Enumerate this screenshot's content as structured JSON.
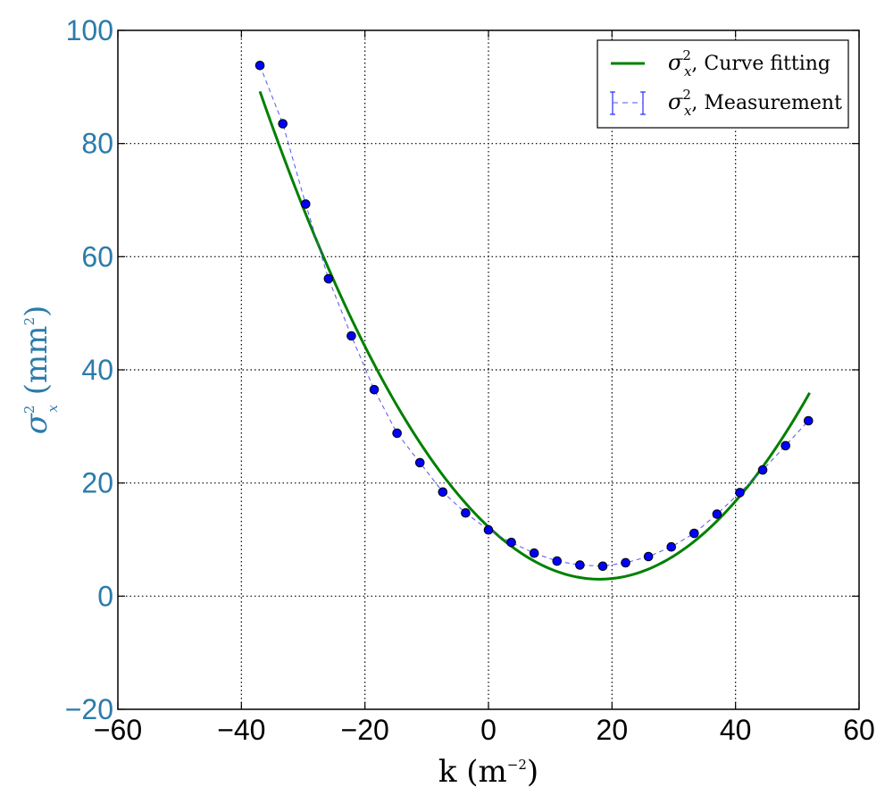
{
  "chart_data": {
    "type": "line",
    "xlabel": {
      "text": "k (m",
      "sup": "−2",
      "close": ")"
    },
    "ylabel": {
      "sym": "σ",
      "sup": "2",
      "sub": "x",
      "text": " (mm",
      "sup2": "2",
      "close": ")"
    },
    "xlim": [
      -60,
      60
    ],
    "ylim": [
      -20,
      100
    ],
    "xticks": [
      -60,
      -40,
      -20,
      0,
      20,
      40,
      60
    ],
    "yticks": [
      -20,
      0,
      20,
      40,
      60,
      80,
      100
    ],
    "xtick_labels": [
      "−60",
      "−40",
      "−20",
      "0",
      "20",
      "40",
      "60"
    ],
    "ytick_labels": [
      "−20",
      "0",
      "20",
      "40",
      "60",
      "80",
      "100"
    ],
    "grid": true,
    "legend_position": "top-right",
    "ytick_color": "#2b7bab",
    "ylabel_color": "#2b7bab",
    "series": [
      {
        "name_sym": "σ",
        "name_sup": "2",
        "name_sub": "x",
        "name": ", Curve fitting",
        "kind": "line",
        "color": "#008000",
        "x_range": [
          -37,
          52
        ],
        "fit": {
          "vertex_x": 18,
          "vertex_y": 3,
          "a": 0.0285
        }
      },
      {
        "name_sym": "σ",
        "name_sup": "2",
        "name_sub": "x",
        "name": ", Measurement",
        "kind": "errorbar",
        "color": "#0000ff",
        "line_color": "#5555ee",
        "x": [
          -37,
          -33.3,
          -29.6,
          -25.9,
          -22.2,
          -18.5,
          -14.8,
          -11.1,
          -7.4,
          -3.7,
          0,
          3.7,
          7.4,
          11.1,
          14.8,
          18.5,
          22.2,
          25.9,
          29.6,
          33.3,
          37,
          40.7,
          44.4,
          48.1,
          51.8
        ],
        "y": [
          93.8,
          83.5,
          69.3,
          56.1,
          46.0,
          36.5,
          28.8,
          23.6,
          18.4,
          14.7,
          11.7,
          9.5,
          7.6,
          6.2,
          5.5,
          5.3,
          5.9,
          7.0,
          8.7,
          11.1,
          14.5,
          18.3,
          22.3,
          26.6,
          31.0
        ]
      }
    ]
  }
}
